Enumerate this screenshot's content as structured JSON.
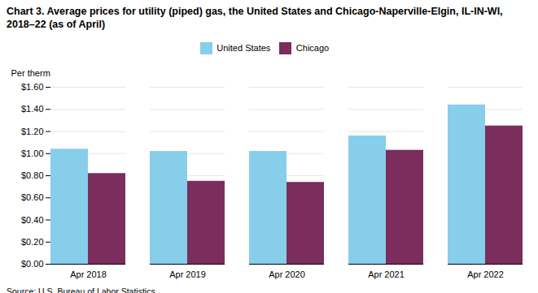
{
  "chart_data": {
    "type": "bar",
    "title": "Chart 3. Average prices for utility (piped) gas, the United States and Chicago-Naperville-Elgin, IL-IN-WI, 2018–22 (as of April)",
    "ylabel": "Per therm",
    "source": "Source: U.S. Bureau of Labor Statistics.",
    "categories": [
      "Apr 2018",
      "Apr 2019",
      "Apr 2020",
      "Apr 2021",
      "Apr 2022"
    ],
    "series": [
      {
        "name": "United States",
        "color": "#87CEEB",
        "values": [
          1.04,
          1.02,
          1.02,
          1.16,
          1.44
        ]
      },
      {
        "name": "Chicago",
        "color": "#7B2D5E",
        "values": [
          0.82,
          0.75,
          0.74,
          1.03,
          1.25
        ]
      }
    ],
    "ylim": [
      0,
      1.6
    ],
    "yticks": [
      {
        "value": 0.0,
        "label": "$0.00"
      },
      {
        "value": 0.2,
        "label": "$0.20"
      },
      {
        "value": 0.4,
        "label": "$0.40"
      },
      {
        "value": 0.6,
        "label": "$0.60"
      },
      {
        "value": 0.8,
        "label": "$0.80"
      },
      {
        "value": 1.0,
        "label": "$1.00"
      },
      {
        "value": 1.2,
        "label": "$1.20"
      },
      {
        "value": 1.4,
        "label": "$1.40"
      },
      {
        "value": 1.6,
        "label": "$1.60"
      }
    ],
    "grid": true,
    "legend": "top"
  }
}
